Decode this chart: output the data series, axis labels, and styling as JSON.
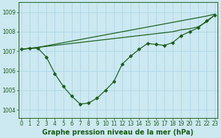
{
  "background_color": "#cce8f0",
  "grid_color": "#b0d8e8",
  "line_color": "#1a5c1a",
  "marker_color": "#1a5c1a",
  "title": "Graphe pression niveau de la mer (hPa)",
  "hours": [
    0,
    1,
    2,
    3,
    4,
    5,
    6,
    7,
    8,
    9,
    10,
    11,
    12,
    13,
    14,
    15,
    16,
    17,
    18,
    19,
    20,
    21,
    22,
    23
  ],
  "yticks": [
    1004,
    1005,
    1006,
    1007,
    1008,
    1009
  ],
  "ylim": [
    1003.6,
    1009.5
  ],
  "xlim": [
    -0.3,
    23.3
  ],
  "series_main": [
    1007.1,
    1007.15,
    1007.15,
    1006.7,
    1005.85,
    1005.2,
    1004.7,
    1004.3,
    1004.35,
    1004.6,
    1005.0,
    1005.45,
    1006.35,
    1006.75,
    1007.1,
    1007.4,
    1007.35,
    1007.3,
    1007.45,
    1007.8,
    1008.0,
    1008.2,
    1008.55,
    1008.85
  ],
  "series_line2": [
    1007.1,
    1007.15,
    1007.2,
    1007.25,
    1007.3,
    1007.35,
    1007.4,
    1007.45,
    1007.5,
    1007.55,
    1007.6,
    1007.65,
    1007.7,
    1007.75,
    1007.8,
    1007.85,
    1007.9,
    1007.95,
    1008.0,
    1008.1,
    1008.15,
    1008.25,
    1008.5,
    1008.87
  ],
  "series_line3": [
    1007.1,
    1007.15,
    1007.2,
    1007.28,
    1007.36,
    1007.44,
    1007.52,
    1007.6,
    1007.68,
    1007.76,
    1007.84,
    1007.92,
    1008.0,
    1008.08,
    1008.16,
    1008.24,
    1008.32,
    1008.4,
    1008.48,
    1008.56,
    1008.64,
    1008.72,
    1008.8,
    1008.9
  ],
  "title_fontsize": 7.0,
  "tick_fontsize": 5.5,
  "title_color": "#1a5c1a",
  "tick_color": "#1a5c1a",
  "axis_color": "#1a5c1a",
  "linewidth": 0.9,
  "markersize": 2.5
}
